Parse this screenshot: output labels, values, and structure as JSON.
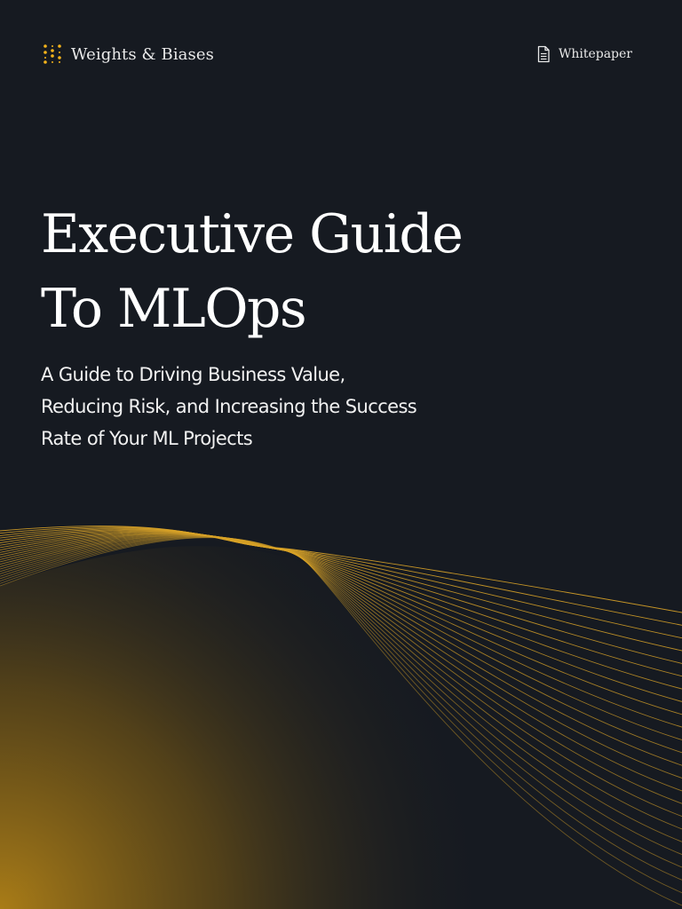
{
  "header": {
    "brand_name": "Weights & Biases",
    "brand_logo_icon": "dotted-logo-icon",
    "doc_type_icon": "document-icon",
    "doc_type_label": "Whitepaper"
  },
  "cover": {
    "title_lines": [
      "Executive Guide",
      "To MLOps"
    ],
    "subtitle_lines": [
      "A Guide to Driving Business Value,",
      "Reducing Risk, and Increasing the Success",
      "Rate of Your ML Projects"
    ]
  },
  "colors": {
    "background": "#161a21",
    "accent": "#f5b41a",
    "wave_gold": "#d9a328",
    "glow": "#a97c17"
  }
}
